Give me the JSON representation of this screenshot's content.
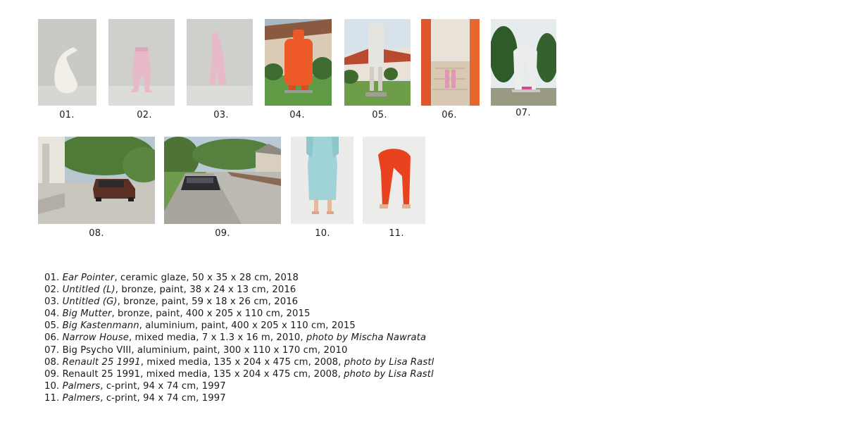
{
  "works": [
    {
      "number": "01.",
      "title": "Ear Pointer",
      "details": ", ceramic glaze, 50 x 35 x 28 cm, 2018",
      "credit": ""
    },
    {
      "number": "02.",
      "title": "Untitled (L)",
      "details": ", bronze, paint, 38 x 24 x 13 cm, 2016",
      "credit": ""
    },
    {
      "number": "03.",
      "title": "Untitled (G)",
      "details": ", bronze, paint, 59 x 18 x 26 cm, 2016",
      "credit": ""
    },
    {
      "number": "04.",
      "title": "Big Mutter",
      "details": ", bronze, paint, 400 x 205 x 110 cm, 2015",
      "credit": ""
    },
    {
      "number": "05.",
      "title": "Big Kastenmann",
      "details": ", aluminium, paint, 400 x 205 x 110 cm, 2015",
      "credit": ""
    },
    {
      "number": "06.",
      "title": "Narrow House",
      "details": ", mixed media, 7 x 1.3 x 16 m, 2010, ",
      "credit": "photo by Mischa Nawrata"
    },
    {
      "number": "07.",
      "title": "Big Psycho VIII",
      "details": ", aluminium, paint, 300 x 110 x 170 cm, 2010",
      "credit": ""
    },
    {
      "number": "08.",
      "title": "Renault 25 1991",
      "details": ", mixed media, 135 x 204 x 475 cm, 2008, ",
      "credit": "photo by Lisa Rastl"
    },
    {
      "number": "09.",
      "title": "Renault 25 1991",
      "details": ", mixed media, 135 x 204 x 475 cm, 2008, ",
      "credit": "photo by Lisa Rastl"
    },
    {
      "number": "10.",
      "title": "Palmers",
      "details": ", c-print, 94 x 74 cm, 1997",
      "credit": ""
    },
    {
      "number": "11.",
      "title": "Palmers",
      "details": ", c-print, 94 x 74 cm, 1997",
      "credit": ""
    }
  ]
}
